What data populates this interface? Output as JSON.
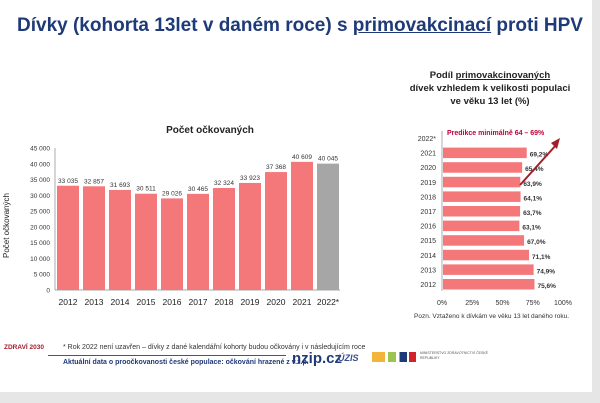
{
  "title": {
    "part1": "Dívky (kohorta 13let v daném roce) s ",
    "underlined": "primovakcinací",
    "part2": " proti HPV"
  },
  "colors": {
    "bar": "#f4777a",
    "prediction_bar": "#a6a6a6",
    "title": "#1f3a78",
    "arrow": "#a0202a",
    "annotation": "#c0003a"
  },
  "chart_data": [
    {
      "type": "bar",
      "title": "Počet očkovaných",
      "ylabel": "Počet očkovaných",
      "xlabel": "",
      "categories": [
        "2012",
        "2013",
        "2014",
        "2015",
        "2016",
        "2017",
        "2018",
        "2019",
        "2020",
        "2021",
        "2022*"
      ],
      "values": [
        33035,
        32857,
        31693,
        30511,
        29026,
        30465,
        32324,
        33923,
        37368,
        40609,
        40045
      ],
      "data_labels": [
        "33 035",
        "32 857",
        "31 693",
        "30 511",
        "29 026",
        "30 465",
        "32 324",
        "33 923",
        "37 368",
        "40 609",
        "40 045"
      ],
      "ylim": [
        0,
        45000
      ],
      "yticks": [
        "0",
        "5 000",
        "10 000",
        "15 000",
        "20 000",
        "25 000",
        "30 000",
        "35 000",
        "40 000",
        "45 000"
      ],
      "grid": false,
      "legend": "none"
    },
    {
      "type": "bar",
      "orientation": "horizontal",
      "title_lines": [
        "Podíl ",
        "primovakcinovaných",
        "dívek vzhledem k velikosti populaci",
        "ve věku 13 let (%)"
      ],
      "categories": [
        "2022*",
        "2021",
        "2020",
        "2019",
        "2018",
        "2017",
        "2016",
        "2015",
        "2014",
        "2013",
        "2012"
      ],
      "values": [
        null,
        69.2,
        65.4,
        63.9,
        64.1,
        63.7,
        63.1,
        67.0,
        71.1,
        74.9,
        75.6
      ],
      "data_labels": [
        "",
        "69,2%",
        "65,4%",
        "63,9%",
        "64,1%",
        "63,7%",
        "63,1%",
        "67,0%",
        "71,1%",
        "74,9%",
        "75,6%"
      ],
      "xlim": [
        0,
        100
      ],
      "xticks": [
        "0%",
        "25%",
        "50%",
        "75%",
        "100%"
      ],
      "annotation": "Predikce minimálně 64 – 69%",
      "note": "Pozn. Vztaženo k dívkám ve věku 13 let daného roku.",
      "grid": false,
      "legend": "none"
    }
  ],
  "footer": {
    "footnote": "* Rok 2022 není uzavřen – dívky z dané kalendářní kohorty budou očkovány i v následujícím roce",
    "link": "Aktuální data o proočkovanosti české populace: očkování hrazené z v.z.p.",
    "logos": {
      "zdravi": "ZDRAVÍ 2030",
      "nzip": "nzip.cz",
      "uzis": "ÚZIS",
      "ministry": "MINISTERSTVO ZDRAVOTNICTVÍ ČESKÉ REPUBLIKY"
    }
  }
}
